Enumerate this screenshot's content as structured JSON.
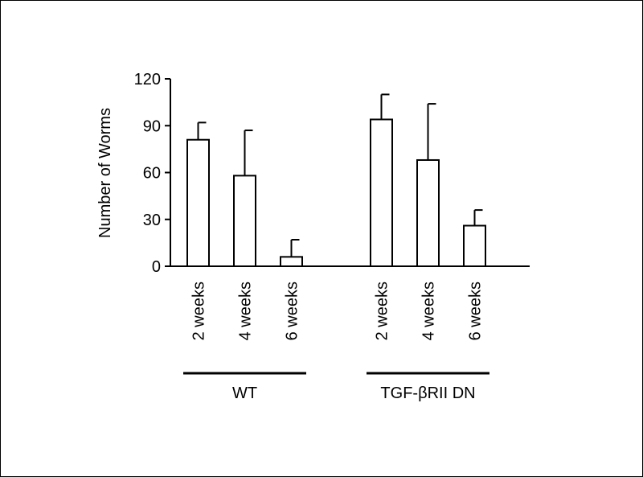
{
  "chart_data": {
    "type": "bar",
    "ylabel": "Number of Worms",
    "ylim": [
      0,
      120
    ],
    "yticks": [
      0,
      30,
      60,
      90,
      120
    ],
    "groups": [
      {
        "label": "WT",
        "bars": [
          {
            "category": "2 weeks",
            "value": 81,
            "error": 11
          },
          {
            "category": "4 weeks",
            "value": 58,
            "error": 29
          },
          {
            "category": "6 weeks",
            "value": 6,
            "error": 11
          }
        ]
      },
      {
        "label": "TGF-βRII DN",
        "bars": [
          {
            "category": "2 weeks",
            "value": 94,
            "error": 16
          },
          {
            "category": "4 weeks",
            "value": 68,
            "error": 36
          },
          {
            "category": "6 weeks",
            "value": 26,
            "error": 10
          }
        ]
      }
    ]
  }
}
